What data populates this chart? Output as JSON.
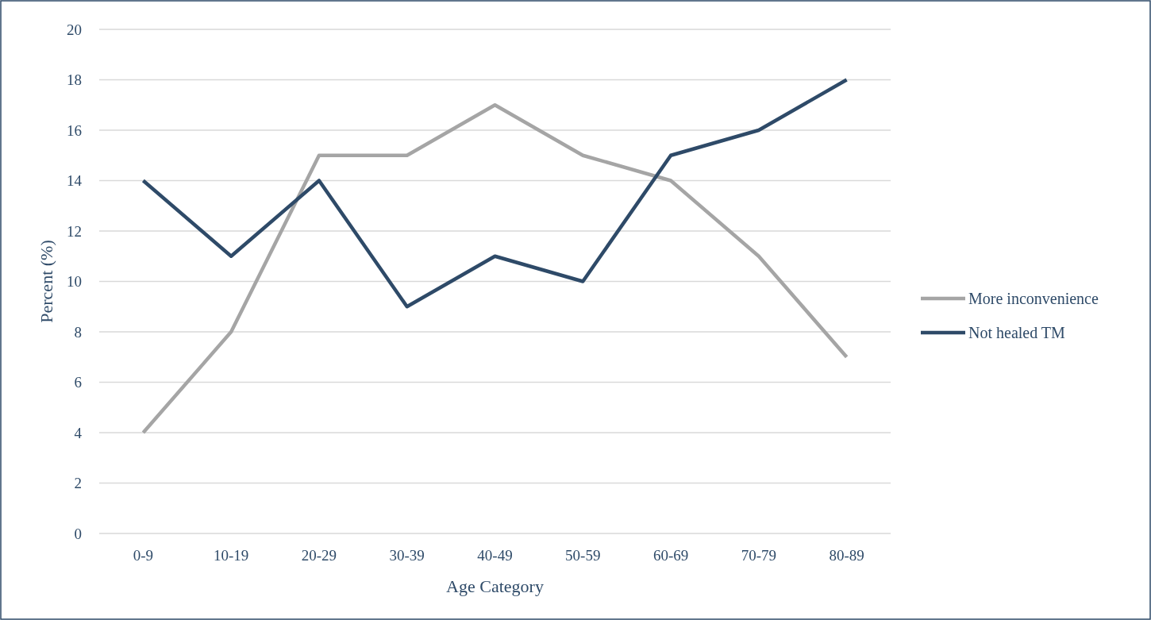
{
  "chart_data": {
    "type": "line",
    "xlabel": "Age Category",
    "ylabel": "Percent (%)",
    "categories": [
      "0-9",
      "10-19",
      "20-29",
      "30-39",
      "40-49",
      "50-59",
      "60-69",
      "70-79",
      "80-89"
    ],
    "series": [
      {
        "name": "More inconvenience",
        "color": "#a5a5a5",
        "values": [
          4,
          8,
          15,
          15,
          17,
          15,
          14,
          11,
          7
        ]
      },
      {
        "name": "Not healed TM",
        "color": "#2e4a68",
        "values": [
          14,
          11,
          14,
          9,
          11,
          10,
          15,
          16,
          18
        ]
      }
    ],
    "ylim": [
      0,
      20
    ],
    "yticks": [
      0,
      2,
      4,
      6,
      8,
      10,
      12,
      14,
      16,
      18,
      20
    ],
    "grid": "y",
    "legend": "right",
    "marker": "none",
    "line_style": "solid"
  }
}
